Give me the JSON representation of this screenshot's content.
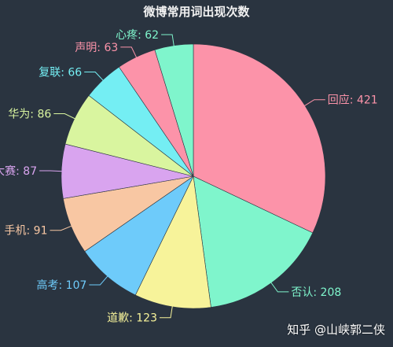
{
  "chart_data": {
    "type": "pie",
    "title": "微博常用词出现次数",
    "slices": [
      {
        "label": "回应",
        "value": 421,
        "color": "#fc93a9"
      },
      {
        "label": "否认",
        "value": 208,
        "color": "#7ff5cc"
      },
      {
        "label": "道歉",
        "value": 123,
        "color": "#f7f39a"
      },
      {
        "label": "高考",
        "value": 107,
        "color": "#6ecbfa"
      },
      {
        "label": "手机",
        "value": 91,
        "color": "#f8c7a3"
      },
      {
        "label": "大赛",
        "value": 87,
        "color": "#d9a4ef"
      },
      {
        "label": "华为",
        "value": 86,
        "color": "#d9f59f"
      },
      {
        "label": "复联",
        "value": 66,
        "color": "#74eef3"
      },
      {
        "label": "声明",
        "value": 63,
        "color": "#fc93a9"
      },
      {
        "label": "心疼",
        "value": 62,
        "color": "#7ff5cc"
      }
    ]
  },
  "watermark": "知乎 @山峡郭二侠"
}
